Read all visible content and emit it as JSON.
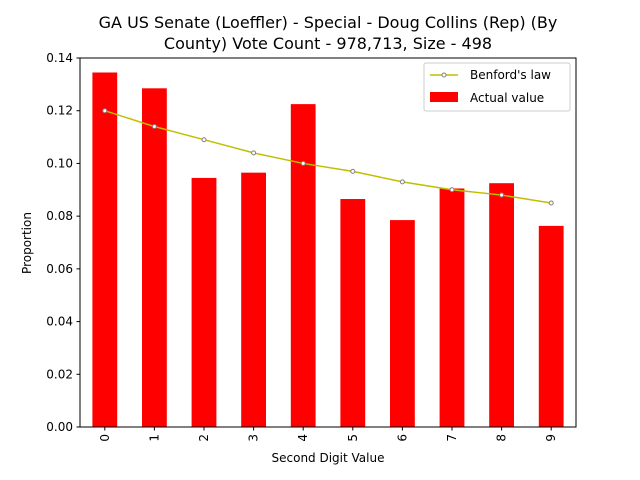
{
  "chart_data": {
    "type": "bar",
    "title_lines": [
      "GA US Senate (Loeffler) - Special - Doug Collins (Rep) (By",
      "County) Vote Count - 978,713, Size - 498"
    ],
    "xlabel": "Second Digit Value",
    "ylabel": "Proportion",
    "categories": [
      "0",
      "1",
      "2",
      "3",
      "4",
      "5",
      "6",
      "7",
      "8",
      "9"
    ],
    "ylim": [
      0,
      0.14
    ],
    "yticks": [
      "0.00",
      "0.02",
      "0.04",
      "0.06",
      "0.08",
      "0.10",
      "0.12",
      "0.14"
    ],
    "grid": false,
    "legend_position": "top-right",
    "series": [
      {
        "name": "Benford's law",
        "kind": "line",
        "color": "#bfbf00",
        "values": [
          0.12,
          0.114,
          0.109,
          0.104,
          0.1,
          0.097,
          0.093,
          0.09,
          0.088,
          0.085
        ]
      },
      {
        "name": "Actual value",
        "kind": "bar",
        "color": "#ff0000",
        "values": [
          0.1345,
          0.1285,
          0.0945,
          0.0965,
          0.1225,
          0.0865,
          0.0785,
          0.0905,
          0.0925,
          0.0763
        ]
      }
    ]
  }
}
